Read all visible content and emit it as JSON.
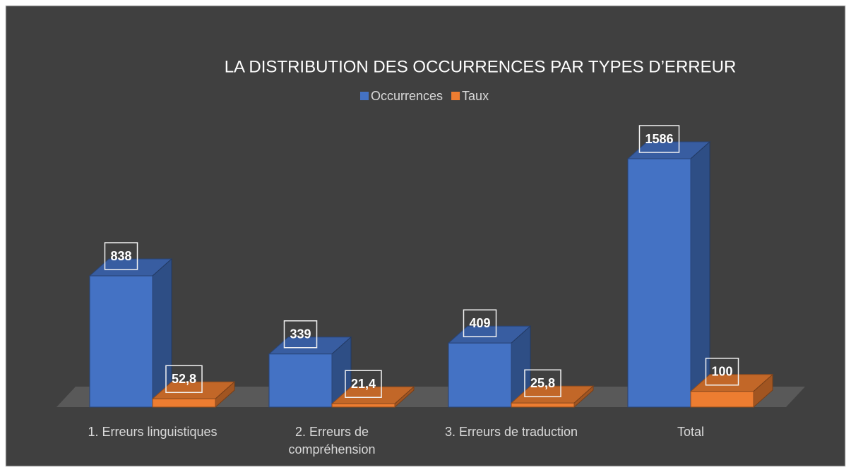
{
  "chart_data": {
    "type": "bar3d",
    "title": "LA DISTRIBUTION DES OCCURRENCES PAR TYPES D’ERREUR",
    "categories": [
      "1. Erreurs linguistiques",
      "2. Erreurs de compréhension",
      "3. Erreurs de traduction",
      "Total"
    ],
    "series": [
      {
        "name": "Occurrences",
        "color": "#4472c4",
        "values": [
          838,
          339,
          409,
          1586
        ]
      },
      {
        "name": "Taux",
        "color": "#ed7d31",
        "values": [
          52.8,
          21.4,
          25.8,
          100
        ],
        "value_labels": [
          "52,8",
          "21,4",
          "25,8",
          "100"
        ]
      }
    ],
    "legend": "top"
  }
}
